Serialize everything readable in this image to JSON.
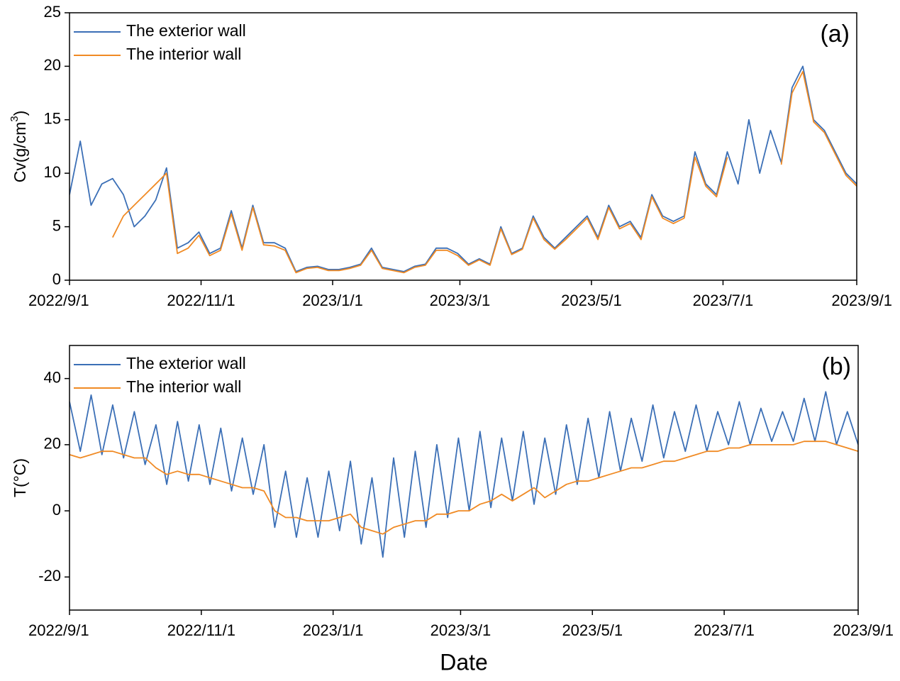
{
  "chart_data": [
    {
      "type": "line",
      "annotation": "(a)",
      "ylabel": [
        "Cv(g/cm",
        "3",
        ")"
      ],
      "legend": "upper left",
      "xlim": [
        "2022/9/1",
        "2023/9/1"
      ],
      "xticks": [
        "2022/9/1",
        "2022/11/1",
        "2023/1/1",
        "2023/3/1",
        "2023/5/1",
        "2023/7/1",
        "2023/9/1"
      ],
      "ylim": [
        0,
        25
      ],
      "yticks": [
        0,
        5,
        10,
        15,
        20,
        25
      ],
      "x": [
        "2022/9/1",
        "2022/9/6",
        "2022/9/11",
        "2022/9/16",
        "2022/9/21",
        "2022/9/26",
        "2022/10/1",
        "2022/10/6",
        "2022/10/11",
        "2022/10/16",
        "2022/10/21",
        "2022/10/26",
        "2022/10/31",
        "2022/11/5",
        "2022/11/10",
        "2022/11/15",
        "2022/11/20",
        "2022/11/25",
        "2022/11/30",
        "2022/12/5",
        "2022/12/10",
        "2022/12/15",
        "2022/12/20",
        "2022/12/25",
        "2022/12/30",
        "2023/1/4",
        "2023/1/9",
        "2023/1/14",
        "2023/1/19",
        "2023/1/24",
        "2023/1/29",
        "2023/2/3",
        "2023/2/8",
        "2023/2/13",
        "2023/2/18",
        "2023/2/23",
        "2023/2/28",
        "2023/3/5",
        "2023/3/10",
        "2023/3/15",
        "2023/3/20",
        "2023/3/25",
        "2023/3/30",
        "2023/4/4",
        "2023/4/9",
        "2023/4/14",
        "2023/4/19",
        "2023/4/24",
        "2023/4/29",
        "2023/5/4",
        "2023/5/9",
        "2023/5/14",
        "2023/5/19",
        "2023/5/24",
        "2023/5/29",
        "2023/6/3",
        "2023/6/8",
        "2023/6/13",
        "2023/6/18",
        "2023/6/23",
        "2023/6/28",
        "2023/7/3",
        "2023/7/8",
        "2023/7/13",
        "2023/7/18",
        "2023/7/23",
        "2023/7/28",
        "2023/8/2",
        "2023/8/7",
        "2023/8/12",
        "2023/8/17",
        "2023/8/22",
        "2023/8/27",
        "2023/9/1"
      ],
      "series": [
        {
          "name": "The exterior wall",
          "color": "#3b6fb6",
          "values": [
            8,
            13,
            7,
            9,
            9.5,
            8,
            5,
            6,
            7.5,
            10.5,
            3,
            3.5,
            4.5,
            2.5,
            3,
            6.5,
            3,
            7,
            3.5,
            3.5,
            3,
            0.8,
            1.2,
            1.3,
            1,
            1,
            1.2,
            1.5,
            3,
            1.2,
            1,
            0.8,
            1.3,
            1.5,
            3,
            3,
            2.5,
            1.5,
            2,
            1.5,
            5,
            2.5,
            3,
            6,
            4,
            3,
            4,
            5,
            6,
            4,
            7,
            5,
            5.5,
            4,
            8,
            6,
            5.5,
            6,
            12,
            9,
            8,
            12,
            9,
            15,
            10,
            14,
            11,
            18,
            20,
            15,
            14,
            12,
            10,
            9
          ]
        },
        {
          "name": "The interior wall",
          "color": "#f08a24",
          "values": [
            null,
            null,
            null,
            null,
            4,
            6,
            7,
            8,
            9,
            10,
            2.5,
            3,
            4.2,
            2.3,
            2.8,
            6.2,
            2.8,
            6.8,
            3.3,
            3.2,
            2.8,
            0.7,
            1.1,
            1.2,
            0.9,
            0.9,
            1.1,
            1.4,
            2.8,
            1.1,
            0.9,
            0.7,
            1.2,
            1.4,
            2.8,
            2.8,
            2.3,
            1.4,
            1.9,
            1.4,
            4.8,
            2.4,
            2.9,
            5.8,
            3.8,
            2.9,
            3.8,
            4.8,
            5.8,
            3.8,
            6.8,
            4.8,
            5.3,
            3.8,
            7.8,
            5.8,
            5.3,
            5.8,
            11.5,
            8.8,
            7.8,
            11.5,
            null,
            null,
            null,
            null,
            10.8,
            17.5,
            19.5,
            14.8,
            13.8,
            11.8,
            9.8,
            8.8
          ]
        }
      ]
    },
    {
      "type": "line",
      "annotation": "(b)",
      "ylabel": "T(°C)",
      "xlabel": "Date",
      "legend": "upper left",
      "xlim": [
        "2022/9/1",
        "2023/9/1"
      ],
      "xticks": [
        "2022/9/1",
        "2022/11/1",
        "2023/1/1",
        "2023/3/1",
        "2023/5/1",
        "2023/7/1",
        "2023/9/1"
      ],
      "ylim": [
        -30,
        50
      ],
      "yticks": [
        -20,
        0,
        20,
        40
      ],
      "x": [
        "2022/9/1",
        "2022/9/6",
        "2022/9/11",
        "2022/9/16",
        "2022/9/21",
        "2022/9/26",
        "2022/10/1",
        "2022/10/6",
        "2022/10/11",
        "2022/10/16",
        "2022/10/21",
        "2022/10/26",
        "2022/10/31",
        "2022/11/5",
        "2022/11/10",
        "2022/11/15",
        "2022/11/20",
        "2022/11/25",
        "2022/11/30",
        "2022/12/5",
        "2022/12/10",
        "2022/12/15",
        "2022/12/20",
        "2022/12/25",
        "2022/12/30",
        "2023/1/4",
        "2023/1/9",
        "2023/1/14",
        "2023/1/19",
        "2023/1/24",
        "2023/1/29",
        "2023/2/3",
        "2023/2/8",
        "2023/2/13",
        "2023/2/18",
        "2023/2/23",
        "2023/2/28",
        "2023/3/5",
        "2023/3/10",
        "2023/3/15",
        "2023/3/20",
        "2023/3/25",
        "2023/3/30",
        "2023/4/4",
        "2023/4/9",
        "2023/4/14",
        "2023/4/19",
        "2023/4/24",
        "2023/4/29",
        "2023/5/4",
        "2023/5/9",
        "2023/5/14",
        "2023/5/19",
        "2023/5/24",
        "2023/5/29",
        "2023/6/3",
        "2023/6/8",
        "2023/6/13",
        "2023/6/18",
        "2023/6/23",
        "2023/6/28",
        "2023/7/3",
        "2023/7/8",
        "2023/7/13",
        "2023/7/18",
        "2023/7/23",
        "2023/7/28",
        "2023/8/2",
        "2023/8/7",
        "2023/8/12",
        "2023/8/17",
        "2023/8/22",
        "2023/8/27",
        "2023/9/1"
      ],
      "series": [
        {
          "name": "The exterior wall",
          "color": "#3b6fb6",
          "values": [
            33,
            18,
            35,
            17,
            32,
            16,
            30,
            14,
            26,
            8,
            27,
            9,
            26,
            8,
            25,
            6,
            22,
            5,
            20,
            -5,
            12,
            -8,
            10,
            -8,
            12,
            -6,
            15,
            -10,
            10,
            -14,
            16,
            -8,
            18,
            -5,
            20,
            -2,
            22,
            0,
            24,
            1,
            22,
            3,
            24,
            2,
            22,
            5,
            26,
            8,
            28,
            10,
            30,
            12,
            28,
            15,
            32,
            16,
            30,
            18,
            32,
            18,
            30,
            20,
            33,
            20,
            31,
            21,
            30,
            21,
            34,
            21,
            36,
            20,
            30,
            20
          ]
        },
        {
          "name": "The interior wall",
          "color": "#f08a24",
          "values": [
            17,
            16,
            17,
            18,
            18,
            17,
            16,
            16,
            13,
            11,
            12,
            11,
            11,
            10,
            9,
            8,
            7,
            7,
            6,
            0,
            -2,
            -2,
            -3,
            -3,
            -3,
            -2,
            -1,
            -5,
            -6,
            -7,
            -5,
            -4,
            -3,
            -3,
            -1,
            -1,
            0,
            0,
            2,
            3,
            5,
            3,
            5,
            7,
            4,
            6,
            8,
            9,
            9,
            10,
            11,
            12,
            13,
            13,
            14,
            15,
            15,
            16,
            17,
            18,
            18,
            19,
            19,
            20,
            20,
            20,
            20,
            20,
            21,
            21,
            21,
            20,
            19,
            18
          ]
        }
      ]
    }
  ]
}
